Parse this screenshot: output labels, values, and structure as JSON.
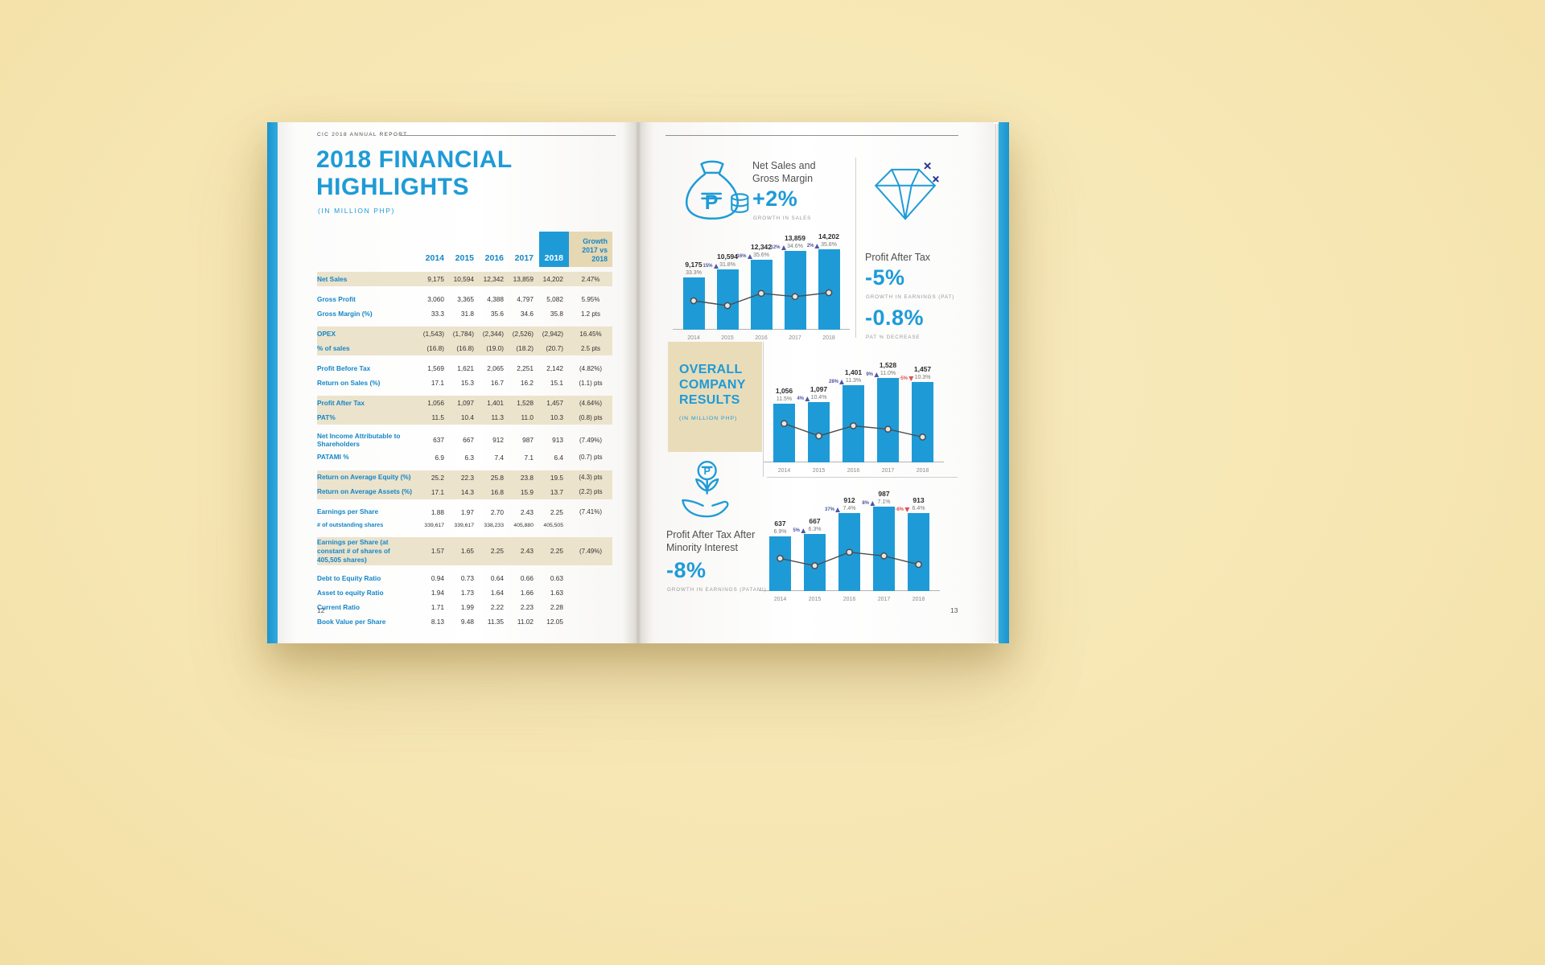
{
  "report": {
    "running_header": "CIC 2018 ANNUAL REPORT"
  },
  "left_page": {
    "page_number": "12",
    "title_line1": "2018 FINANCIAL",
    "title_line2": "HIGHLIGHTS",
    "subtitle": "(IN MILLION PHP)",
    "table": {
      "year_headers": [
        "2014",
        "2015",
        "2016",
        "2017",
        "2018"
      ],
      "growth_header_lines": [
        "Growth",
        "2017 vs",
        "2018"
      ],
      "rows": [
        {
          "label": "Net Sales",
          "values": [
            "9,175",
            "10,594",
            "12,342",
            "13,859",
            "14,202"
          ],
          "growth": "2.47%",
          "shaded": true,
          "gap_before": false
        },
        {
          "label": "Gross Profit",
          "values": [
            "3,060",
            "3,365",
            "4,388",
            "4,797",
            "5,082"
          ],
          "growth": "5.95%",
          "shaded": false,
          "gap_before": true
        },
        {
          "label": "Gross Margin (%)",
          "values": [
            "33.3",
            "31.8",
            "35.6",
            "34.6",
            "35.8"
          ],
          "growth": "1.2 pts",
          "shaded": false,
          "gap_before": false
        },
        {
          "label": "OPEX",
          "values": [
            "(1,543)",
            "(1,784)",
            "(2,344)",
            "(2,526)",
            "(2,942)"
          ],
          "growth": "16.45%",
          "shaded": true,
          "gap_before": true
        },
        {
          "label": "% of sales",
          "values": [
            "(16.8)",
            "(16.8)",
            "(19.0)",
            "(18.2)",
            "(20.7)"
          ],
          "growth": "2.5 pts",
          "shaded": true,
          "gap_before": false
        },
        {
          "label": "Profit Before Tax",
          "values": [
            "1,569",
            "1,621",
            "2,065",
            "2,251",
            "2,142"
          ],
          "growth": "(4.82%)",
          "shaded": false,
          "gap_before": true
        },
        {
          "label": "Return on Sales (%)",
          "values": [
            "17.1",
            "15.3",
            "16.7",
            "16.2",
            "15.1"
          ],
          "growth": "(1.1) pts",
          "shaded": false,
          "gap_before": false
        },
        {
          "label": "Profit After Tax",
          "values": [
            "1,056",
            "1,097",
            "1,401",
            "1,528",
            "1,457"
          ],
          "growth": "(4.64%)",
          "shaded": true,
          "gap_before": true
        },
        {
          "label": "PAT%",
          "values": [
            "11.5",
            "10.4",
            "11.3",
            "11.0",
            "10.3"
          ],
          "growth": "(0.8) pts",
          "shaded": true,
          "gap_before": false
        },
        {
          "label": "Net Income Attributable to Shareholders",
          "values": [
            "637",
            "667",
            "912",
            "987",
            "913"
          ],
          "growth": "(7.49%)",
          "shaded": false,
          "gap_before": true
        },
        {
          "label": "PATAMI %",
          "values": [
            "6.9",
            "6.3",
            "7.4",
            "7.1",
            "6.4"
          ],
          "growth": "(0.7) pts",
          "shaded": false,
          "gap_before": false
        },
        {
          "label": "Return on Average Equity (%)",
          "values": [
            "25.2",
            "22.3",
            "25.8",
            "23.8",
            "19.5"
          ],
          "growth": "(4.3) pts",
          "shaded": true,
          "gap_before": true
        },
        {
          "label": "Return on Average Assets (%)",
          "values": [
            "17.1",
            "14.3",
            "16.8",
            "15.9",
            "13.7"
          ],
          "growth": "(2.2) pts",
          "shaded": true,
          "gap_before": false
        },
        {
          "label": "Earnings per Share",
          "values": [
            "1.88",
            "1.97",
            "2.70",
            "2.43",
            "2.25"
          ],
          "growth": "(7.41%)",
          "shaded": false,
          "gap_before": true
        },
        {
          "label": "# of outstanding shares",
          "values": [
            "339,617",
            "339,617",
            "338,233",
            "405,880",
            "405,505"
          ],
          "growth": "",
          "shaded": false,
          "gap_before": false,
          "small": true
        },
        {
          "label": "Earnings per Share (at constant # of shares of 405,505 shares)",
          "values": [
            "1.57",
            "1.65",
            "2.25",
            "2.43",
            "2.25"
          ],
          "growth": "(7.49%)",
          "shaded": true,
          "gap_before": true
        },
        {
          "label": "Debt to Equity Ratio",
          "values": [
            "0.94",
            "0.73",
            "0.64",
            "0.66",
            "0.63"
          ],
          "growth": "",
          "shaded": false,
          "gap_before": true
        },
        {
          "label": "Asset to equity Ratio",
          "values": [
            "1.94",
            "1.73",
            "1.64",
            "1.66",
            "1.63"
          ],
          "growth": "",
          "shaded": false,
          "gap_before": false
        },
        {
          "label": "Current Ratio",
          "values": [
            "1.71",
            "1.99",
            "2.22",
            "2.23",
            "2.28"
          ],
          "growth": "",
          "shaded": false,
          "gap_before": false
        },
        {
          "label": "Book Value per Share",
          "values": [
            "8.13",
            "9.48",
            "11.35",
            "11.02",
            "12.05"
          ],
          "growth": "",
          "shaded": false,
          "gap_before": false
        }
      ]
    }
  },
  "right_page": {
    "page_number": "13",
    "net_sales_section": {
      "icon": "money-bag-peso-icon",
      "title_lines": [
        "Net Sales and",
        "Gross Margin"
      ],
      "stat": "+2%",
      "stat_caption": "GROWTH IN SALES"
    },
    "pat_section": {
      "icon": "diamond-icon",
      "title": "Profit After Tax",
      "stat1": "-5%",
      "stat1_caption": "GROWTH IN EARNINGS (PAT)",
      "stat2": "-0.8%",
      "stat2_caption": "PAT % DECREASE"
    },
    "overall_block": {
      "title_lines": [
        "OVERALL",
        "COMPANY",
        "RESULTS"
      ],
      "subtitle": "(IN MILLION PHP)"
    },
    "patami_section": {
      "icon": "hand-peso-plant-icon",
      "title_lines": [
        "Profit After Tax After",
        "Minority Interest"
      ],
      "stat": "-8%",
      "stat_caption": "GROWTH IN EARNINGS (PATAMI)"
    }
  },
  "colors": {
    "accent_blue": "#1e9bd7",
    "table_label_blue": "#1486c8",
    "beige_row_band": "#ece3cc",
    "beige_box": "#e6d8b2",
    "background_cream": "#f7e8b7",
    "growth_up_purple": "#5056a5",
    "growth_down_red": "#e04f4f"
  },
  "chart_data": [
    {
      "type": "bar",
      "title": "Net Sales and Gross Margin",
      "unit": "PHP millions",
      "categories": [
        "2014",
        "2015",
        "2016",
        "2017",
        "2018"
      ],
      "series": [
        {
          "name": "Net Sales",
          "values": [
            9175,
            10594,
            12342,
            13859,
            14202
          ],
          "labels": [
            "9,175",
            "10,594",
            "12,342",
            "13,859",
            "14,202"
          ]
        },
        {
          "name": "Gross Margin %",
          "values": [
            33.3,
            31.8,
            35.6,
            34.6,
            35.8
          ],
          "labels": [
            "33.3%",
            "31.8%",
            "35.6%",
            "34.6%",
            "35.8%"
          ]
        }
      ],
      "growth": [
        {
          "label": "15%",
          "dir": "up"
        },
        {
          "label": "16%",
          "dir": "up"
        },
        {
          "label": "12%",
          "dir": "up"
        },
        {
          "label": "2%",
          "dir": "up"
        }
      ]
    },
    {
      "type": "bar",
      "title": "Profit After Tax",
      "unit": "PHP millions",
      "categories": [
        "2014",
        "2015",
        "2016",
        "2017",
        "2018"
      ],
      "series": [
        {
          "name": "Profit After Tax",
          "values": [
            1056,
            1097,
            1401,
            1528,
            1457
          ],
          "labels": [
            "1,056",
            "1,097",
            "1,401",
            "1,528",
            "1,457"
          ]
        },
        {
          "name": "PAT %",
          "values": [
            11.5,
            10.4,
            11.3,
            11.0,
            10.3
          ],
          "labels": [
            "11.5%",
            "10.4%",
            "11.3%",
            "11.0%",
            "10.3%"
          ]
        }
      ],
      "growth": [
        {
          "label": "4%",
          "dir": "up"
        },
        {
          "label": "28%",
          "dir": "up"
        },
        {
          "label": "9%",
          "dir": "up"
        },
        {
          "label": "-5%",
          "dir": "down"
        }
      ]
    },
    {
      "type": "bar",
      "title": "Profit After Tax After Minority Interest",
      "unit": "PHP millions",
      "categories": [
        "2014",
        "2015",
        "2016",
        "2017",
        "2018"
      ],
      "series": [
        {
          "name": "PATAMI",
          "values": [
            637,
            667,
            912,
            987,
            913
          ],
          "labels": [
            "637",
            "667",
            "912",
            "987",
            "913"
          ]
        },
        {
          "name": "PATAMI %",
          "values": [
            6.9,
            6.3,
            7.4,
            7.1,
            6.4
          ],
          "labels": [
            "6.9%",
            "6.3%",
            "7.4%",
            "7.1%",
            "6.4%"
          ]
        }
      ],
      "growth": [
        {
          "label": "5%",
          "dir": "up"
        },
        {
          "label": "37%",
          "dir": "up"
        },
        {
          "label": "8%",
          "dir": "up"
        },
        {
          "label": "-8%",
          "dir": "down"
        }
      ]
    }
  ]
}
